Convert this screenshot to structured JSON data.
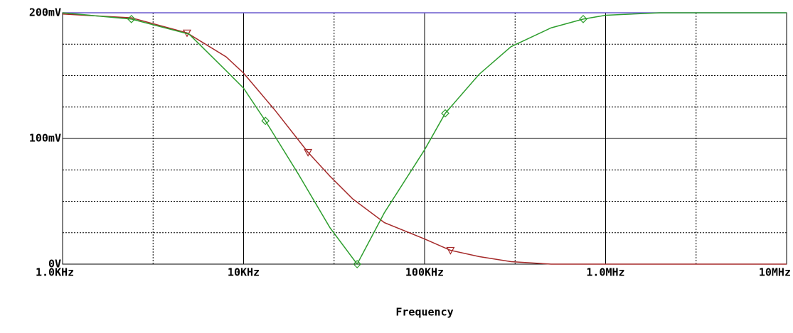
{
  "chart_data": {
    "type": "line",
    "x_scale": "log",
    "grid": true,
    "xlabel": "Frequency",
    "xlim": [
      1000,
      10000000
    ],
    "xticks": [
      {
        "value": 1000,
        "label": "1.0KHz"
      },
      {
        "value": 10000,
        "label": "10KHz"
      },
      {
        "value": 100000,
        "label": "100KHz"
      },
      {
        "value": 1000000,
        "label": "1.0MHz"
      },
      {
        "value": 10000000,
        "label": "10MHz"
      }
    ],
    "x_minor_grid": [
      3162,
      31623,
      316228,
      3162278
    ],
    "ylim": [
      0,
      200
    ],
    "yticks": [
      {
        "value": 0,
        "label": "0V"
      },
      {
        "value": 100,
        "label": "100mV"
      },
      {
        "value": 200,
        "label": "200mV"
      }
    ],
    "y_minor_grid": [
      25,
      50,
      75,
      125,
      150,
      175
    ],
    "series": [
      {
        "color": "#6a5acd",
        "x": [
          1000,
          10000000
        ],
        "values": [
          200,
          200
        ]
      },
      {
        "color": "#a52a2a",
        "marker": "triangle",
        "x": [
          1000,
          2400,
          4870,
          8000,
          10000,
          15000,
          22700,
          30000,
          40000,
          60000,
          100000,
          139000,
          200000,
          300000,
          500000,
          10000000
        ],
        "values": [
          199,
          196,
          184,
          165,
          152,
          122,
          89,
          70,
          52,
          33,
          20,
          11,
          6,
          2,
          0,
          0
        ],
        "markers": {
          "x": [
            4870,
            22700,
            139000
          ],
          "values": [
            184,
            89,
            11
          ]
        }
      },
      {
        "color": "#2e9e2e",
        "marker": "diamond",
        "x": [
          1000,
          2400,
          5000,
          8000,
          10000,
          13200,
          20000,
          30000,
          42400,
          60000,
          100000,
          130000,
          200000,
          300000,
          500000,
          752000,
          1000000,
          2000000,
          10000000
        ],
        "values": [
          200,
          195,
          183,
          154,
          140,
          114,
          72,
          29,
          0,
          41,
          91,
          120,
          151,
          173,
          188,
          195,
          198,
          200,
          200
        ],
        "markers": {
          "x": [
            2400,
            13200,
            42400,
            130000,
            752000
          ],
          "values": [
            195,
            114,
            0,
            120,
            195
          ]
        }
      }
    ]
  }
}
